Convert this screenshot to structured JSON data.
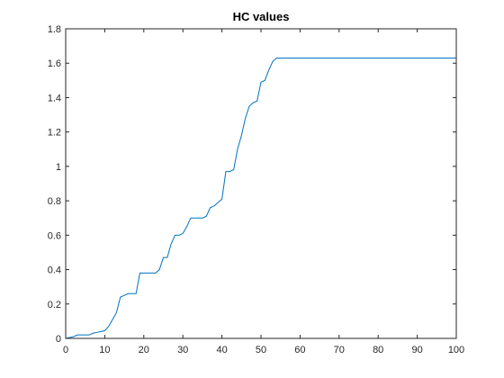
{
  "chart_data": {
    "type": "line",
    "title": "HC values",
    "xlabel": "",
    "ylabel": "",
    "xlim": [
      0,
      100
    ],
    "ylim": [
      0,
      1.8
    ],
    "xticks": [
      0,
      10,
      20,
      30,
      40,
      50,
      60,
      70,
      80,
      90,
      100
    ],
    "xtick_labels": [
      "0",
      "10",
      "20",
      "30",
      "40",
      "50",
      "60",
      "70",
      "80",
      "90",
      "100"
    ],
    "yticks": [
      0,
      0.2,
      0.4,
      0.6,
      0.8,
      1,
      1.2,
      1.4,
      1.6,
      1.8
    ],
    "ytick_labels": [
      "0",
      "0.2",
      "0.4",
      "0.6",
      "0.8",
      "1",
      "1.2",
      "1.4",
      "1.6",
      "1.8"
    ],
    "grid": false,
    "line_color": "#0072BD",
    "series": [
      {
        "x": [
          0,
          1,
          2,
          3,
          4,
          5,
          6,
          7,
          8,
          9,
          10,
          11,
          12,
          13,
          14,
          15,
          16,
          17,
          18,
          19,
          20,
          21,
          22,
          23,
          24,
          25,
          26,
          27,
          28,
          29,
          30,
          31,
          32,
          33,
          34,
          35,
          36,
          37,
          38,
          39,
          40,
          41,
          42,
          43,
          44,
          45,
          46,
          47,
          48,
          49,
          50,
          51,
          52,
          53,
          54,
          55,
          56,
          60,
          70,
          80,
          90,
          100
        ],
        "y": [
          0,
          0.005,
          0.01,
          0.02,
          0.02,
          0.02,
          0.02,
          0.03,
          0.035,
          0.04,
          0.045,
          0.07,
          0.11,
          0.15,
          0.24,
          0.25,
          0.26,
          0.26,
          0.26,
          0.38,
          0.38,
          0.38,
          0.38,
          0.38,
          0.4,
          0.47,
          0.47,
          0.55,
          0.6,
          0.6,
          0.61,
          0.65,
          0.7,
          0.7,
          0.7,
          0.7,
          0.71,
          0.76,
          0.77,
          0.79,
          0.81,
          0.97,
          0.97,
          0.98,
          1.1,
          1.18,
          1.28,
          1.35,
          1.37,
          1.38,
          1.49,
          1.5,
          1.56,
          1.61,
          1.63,
          1.63,
          1.63,
          1.63,
          1.63,
          1.63,
          1.63,
          1.63
        ]
      }
    ]
  }
}
